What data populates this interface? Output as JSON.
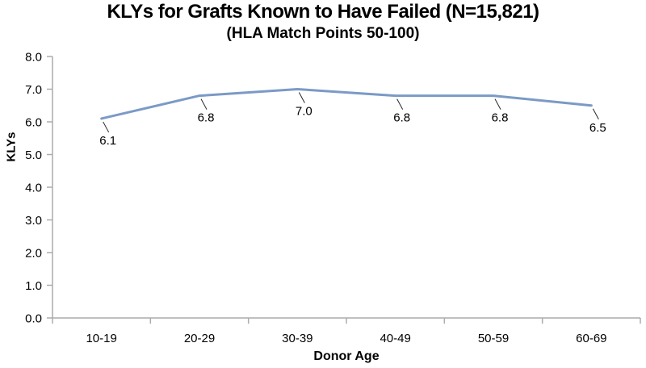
{
  "chart_data": {
    "type": "line",
    "title": "KLYs for Grafts Known to Have Failed (N=15,821)",
    "subtitle": "(HLA Match Points 50-100)",
    "xlabel": "Donor Age",
    "ylabel": "KLYs",
    "categories": [
      "10-19",
      "20-29",
      "30-39",
      "40-49",
      "50-59",
      "60-69"
    ],
    "series": [
      {
        "name": "KLYs",
        "values": [
          6.1,
          6.8,
          7.0,
          6.8,
          6.8,
          6.5
        ]
      }
    ],
    "data_labels": [
      "6.1",
      "6.8",
      "7.0",
      "6.8",
      "6.8",
      "6.5"
    ],
    "ylim": [
      0.0,
      8.0
    ],
    "ytick_step": 1.0,
    "ytick_labels": [
      "0.0",
      "1.0",
      "2.0",
      "3.0",
      "4.0",
      "5.0",
      "6.0",
      "7.0",
      "8.0"
    ],
    "grid": "off",
    "legend": "none",
    "line_color": "#7B9AC6",
    "axis_color": "#ACACAC",
    "leader_color": "#262626",
    "text_color": "#000000",
    "background": "#FFFFFF"
  }
}
